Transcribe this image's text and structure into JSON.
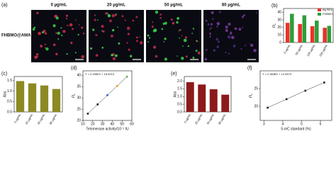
{
  "panel_a": {
    "label": "(a)",
    "row_label": "FHBMO@AMA",
    "columns": [
      "0 µg/mL",
      "20 µg/mL",
      "50 µg/mL",
      "80 µg/mL"
    ]
  },
  "chart_data": [
    {
      "type": "bar",
      "label": "(b)",
      "ylabel": "FL",
      "categories": [
        "0 µg/mL",
        "50 µg/mL",
        "100 µg/mL",
        "200 µg/mL"
      ],
      "series": [
        {
          "name": "Ag NCs",
          "color": "#e8332a",
          "values": [
            26,
            24.5,
            21.5,
            19.5
          ]
        },
        {
          "name": "FHBMO",
          "color": "#2e9e3a",
          "values": [
            38,
            36,
            29,
            22
          ]
        }
      ],
      "ylim": [
        0,
        45
      ],
      "yticks": [
        0,
        10,
        20,
        30,
        40
      ],
      "legend": "upper right"
    },
    {
      "type": "bar",
      "label": "(c)",
      "ylabel": "Abs",
      "categories": [
        "0 µg/mL",
        "20 µg/mL",
        "50 µg/mL",
        "80 µg/mL"
      ],
      "values": [
        1.48,
        1.37,
        1.27,
        1.1
      ],
      "color": "#8c8a22",
      "ylim": [
        0,
        1.7
      ],
      "yticks": [
        {
          "value": 0,
          "label": "0.0"
        },
        {
          "value": 0.5,
          "label": "0.5"
        },
        {
          "value": 1,
          "label": "1.0"
        },
        {
          "value": 1.5,
          "label": "1.5"
        }
      ]
    },
    {
      "type": "scatter",
      "label": "(d)",
      "ylabel": "FL",
      "xlabel": "Telomerase activity/10⁻² IU",
      "annotation": "Y = 0.4082X + 16.9213",
      "x": [
        15,
        25,
        35,
        45,
        55
      ],
      "values": [
        23.0,
        27.1,
        31.2,
        35.3,
        39.4
      ],
      "colors": [
        "#222222",
        "#222222",
        "#3a5fcd",
        "#e89a2a",
        "#6aa84f"
      ],
      "xlim": [
        10,
        60
      ],
      "xticks": [
        10,
        20,
        30,
        40,
        50,
        60
      ],
      "ylim": [
        20,
        42
      ],
      "yticks": [
        20,
        25,
        30,
        35,
        40
      ]
    },
    {
      "type": "bar",
      "label": "(e)",
      "ylabel": "Abs",
      "categories": [
        "0 µg/mL",
        "20 µg/mL",
        "50 µg/mL",
        "80 µg/mL"
      ],
      "values": [
        1.93,
        1.78,
        1.47,
        1.12
      ],
      "color": "#8c1a1a",
      "ylim": [
        0,
        2.3
      ],
      "yticks": [
        {
          "value": 0,
          "label": "0.0"
        },
        {
          "value": 0.5,
          "label": "0.5"
        },
        {
          "value": 1,
          "label": "1.0"
        },
        {
          "value": 1.5,
          "label": "1.5"
        },
        {
          "value": 2,
          "label": "2.0"
        }
      ]
    },
    {
      "type": "scatter",
      "label": "(f)",
      "ylabel": "FL",
      "xlabel": "5-mC standard (%)",
      "annotation": "Y = 2.3638X + 12.0673",
      "x": [
        3.2,
        4.2,
        5.2,
        6.2
      ],
      "values": [
        19.6,
        22.0,
        24.4,
        26.7
      ],
      "colors": [
        "#222222",
        "#222222",
        "#222222",
        "#222222"
      ],
      "xlim": [
        2.8,
        6.6
      ],
      "xticks": [
        3,
        4,
        5,
        6
      ],
      "ylim": [
        16,
        30
      ],
      "yticks": [
        20,
        25
      ]
    }
  ]
}
